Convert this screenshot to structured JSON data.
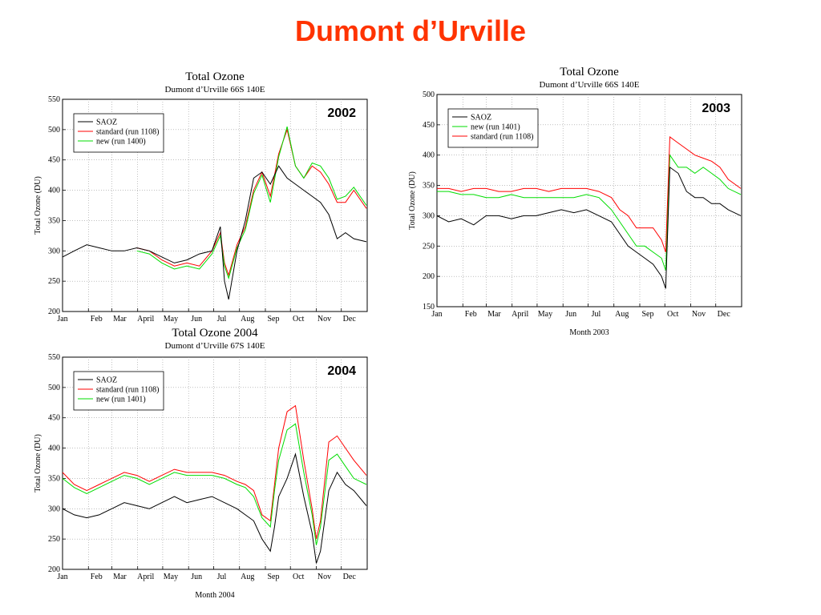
{
  "slide": {
    "title": "Dumont d’Urville"
  },
  "chart_data": [
    {
      "type": "line",
      "badge": "2002",
      "title": "Total Ozone",
      "subtitle": "Dumont d’Urville 66S 140E",
      "xlabel": "",
      "ylabel": "Total Ozone (DU)",
      "ylim": [
        200,
        550
      ],
      "yticks": [
        200,
        250,
        300,
        350,
        400,
        450,
        500,
        550
      ],
      "months": [
        "Jan",
        "Feb",
        "Mar",
        "April",
        "May",
        "Jun",
        "Jul",
        "Aug",
        "Sep",
        "Oct",
        "Nov",
        "Dec"
      ],
      "legend_position": "top-left",
      "grid": true,
      "colors": {
        "SAOZ": "#000000",
        "standard": "#ff0000",
        "new": "#00dd00"
      },
      "series": [
        {
          "name": "SAOZ",
          "color": "#000000",
          "x": [
            1,
            15,
            30,
            45,
            60,
            75,
            90,
            105,
            120,
            135,
            150,
            165,
            180,
            190,
            195,
            200,
            210,
            220,
            230,
            240,
            250,
            260,
            270,
            280,
            290,
            300,
            310,
            320,
            330,
            340,
            350,
            365
          ],
          "y": [
            290,
            300,
            310,
            305,
            300,
            300,
            305,
            300,
            290,
            280,
            285,
            295,
            300,
            340,
            250,
            220,
            300,
            350,
            420,
            430,
            410,
            440,
            420,
            410,
            400,
            390,
            380,
            360,
            320,
            330,
            320,
            315
          ]
        },
        {
          "name": "standard (run 1108)",
          "color": "#ff0000",
          "x": [
            90,
            105,
            120,
            135,
            150,
            165,
            180,
            190,
            195,
            200,
            210,
            220,
            230,
            240,
            250,
            260,
            270,
            280,
            290,
            300,
            310,
            320,
            330,
            340,
            350,
            365
          ],
          "y": [
            305,
            300,
            285,
            275,
            280,
            275,
            300,
            330,
            280,
            260,
            310,
            340,
            400,
            430,
            390,
            460,
            500,
            440,
            420,
            440,
            430,
            410,
            380,
            380,
            400,
            370
          ]
        },
        {
          "name": "new (run 1400)",
          "color": "#00dd00",
          "x": [
            90,
            105,
            120,
            135,
            150,
            165,
            180,
            190,
            195,
            200,
            210,
            220,
            230,
            240,
            250,
            260,
            270,
            280,
            290,
            300,
            310,
            320,
            330,
            340,
            350,
            365
          ],
          "y": [
            300,
            295,
            280,
            270,
            275,
            270,
            295,
            325,
            275,
            255,
            305,
            335,
            395,
            425,
            380,
            455,
            505,
            440,
            420,
            445,
            440,
            420,
            385,
            390,
            405,
            375
          ]
        }
      ]
    },
    {
      "type": "line",
      "badge": "2003",
      "title": "Total Ozone",
      "subtitle": "Dumont d’Urville 66S 140E",
      "xlabel": "Month 2003",
      "ylabel": "Total Ozone (DU)",
      "ylim": [
        150,
        500
      ],
      "yticks": [
        150,
        200,
        250,
        300,
        350,
        400,
        450,
        500
      ],
      "months": [
        "Jan",
        "Feb",
        "Mar",
        "April",
        "May",
        "Jun",
        "Jul",
        "Aug",
        "Sep",
        "Oct",
        "Nov",
        "Dec"
      ],
      "legend_position": "top-left",
      "grid": true,
      "colors": {
        "SAOZ": "#000000",
        "new": "#00dd00",
        "standard": "#ff0000"
      },
      "series": [
        {
          "name": "SAOZ",
          "color": "#000000",
          "x": [
            1,
            15,
            30,
            45,
            60,
            75,
            90,
            105,
            120,
            135,
            150,
            165,
            180,
            195,
            210,
            220,
            230,
            240,
            250,
            260,
            270,
            275,
            280,
            290,
            300,
            310,
            320,
            330,
            340,
            350,
            365
          ],
          "y": [
            300,
            290,
            295,
            285,
            300,
            300,
            295,
            300,
            300,
            305,
            310,
            305,
            310,
            300,
            290,
            270,
            250,
            240,
            230,
            220,
            200,
            180,
            380,
            370,
            340,
            330,
            330,
            320,
            320,
            310,
            300
          ]
        },
        {
          "name": "new (run 1401)",
          "color": "#00dd00",
          "x": [
            1,
            15,
            30,
            45,
            60,
            75,
            90,
            105,
            120,
            135,
            150,
            165,
            180,
            195,
            210,
            220,
            230,
            240,
            250,
            260,
            270,
            275,
            280,
            290,
            300,
            310,
            320,
            330,
            340,
            350,
            365
          ],
          "y": [
            340,
            340,
            335,
            335,
            330,
            330,
            335,
            330,
            330,
            330,
            330,
            330,
            335,
            330,
            310,
            290,
            270,
            250,
            250,
            240,
            230,
            210,
            400,
            380,
            380,
            370,
            380,
            370,
            360,
            345,
            335
          ]
        },
        {
          "name": "standard (run 1108)",
          "color": "#ff0000",
          "x": [
            1,
            15,
            30,
            45,
            60,
            75,
            90,
            105,
            120,
            135,
            150,
            165,
            180,
            195,
            210,
            220,
            230,
            240,
            250,
            260,
            270,
            275,
            280,
            290,
            300,
            310,
            320,
            330,
            340,
            350,
            365
          ],
          "y": [
            345,
            345,
            340,
            345,
            345,
            340,
            340,
            345,
            345,
            340,
            345,
            345,
            345,
            340,
            330,
            310,
            300,
            280,
            280,
            280,
            260,
            240,
            430,
            420,
            410,
            400,
            395,
            390,
            380,
            360,
            345
          ]
        }
      ]
    },
    {
      "type": "line",
      "badge": "2004",
      "title": "Total Ozone 2004",
      "subtitle": "Dumont d’Urville 67S 140E",
      "xlabel": "Month 2004",
      "ylabel": "Total Ozone (DU)",
      "ylim": [
        200,
        550
      ],
      "yticks": [
        200,
        250,
        300,
        350,
        400,
        450,
        500,
        550
      ],
      "months": [
        "Jan",
        "Feb",
        "Mar",
        "April",
        "May",
        "Jun",
        "Jul",
        "Aug",
        "Sep",
        "Oct",
        "Nov",
        "Dec"
      ],
      "legend_position": "top-left",
      "grid": true,
      "colors": {
        "SAOZ": "#000000",
        "standard": "#ff0000",
        "new": "#00dd00"
      },
      "series": [
        {
          "name": "SAOZ",
          "color": "#000000",
          "x": [
            1,
            15,
            30,
            45,
            60,
            75,
            90,
            105,
            120,
            135,
            150,
            165,
            180,
            195,
            210,
            220,
            230,
            240,
            250,
            255,
            260,
            270,
            280,
            290,
            300,
            305,
            310,
            320,
            330,
            340,
            350,
            365
          ],
          "y": [
            300,
            290,
            285,
            290,
            300,
            310,
            305,
            300,
            310,
            320,
            310,
            315,
            320,
            310,
            300,
            290,
            280,
            250,
            230,
            270,
            320,
            350,
            390,
            320,
            260,
            210,
            230,
            330,
            360,
            340,
            330,
            305
          ]
        },
        {
          "name": "standard (run 1108)",
          "color": "#ff0000",
          "x": [
            1,
            15,
            30,
            45,
            60,
            75,
            90,
            105,
            120,
            135,
            150,
            165,
            180,
            195,
            210,
            220,
            230,
            240,
            250,
            255,
            260,
            270,
            280,
            290,
            300,
            305,
            310,
            320,
            330,
            340,
            350,
            365
          ],
          "y": [
            360,
            340,
            330,
            340,
            350,
            360,
            355,
            345,
            355,
            365,
            360,
            360,
            360,
            355,
            345,
            340,
            330,
            290,
            280,
            340,
            400,
            460,
            470,
            380,
            300,
            250,
            280,
            410,
            420,
            400,
            380,
            355
          ]
        },
        {
          "name": "new (run 1401)",
          "color": "#00dd00",
          "x": [
            1,
            15,
            30,
            45,
            60,
            75,
            90,
            105,
            120,
            135,
            150,
            165,
            180,
            195,
            210,
            220,
            230,
            240,
            250,
            255,
            260,
            270,
            280,
            290,
            300,
            305,
            310,
            320,
            330,
            340,
            350,
            365
          ],
          "y": [
            350,
            335,
            325,
            335,
            345,
            355,
            350,
            340,
            350,
            360,
            355,
            355,
            355,
            350,
            340,
            335,
            320,
            285,
            270,
            330,
            380,
            430,
            440,
            360,
            290,
            240,
            270,
            380,
            390,
            370,
            350,
            340
          ]
        }
      ]
    }
  ]
}
